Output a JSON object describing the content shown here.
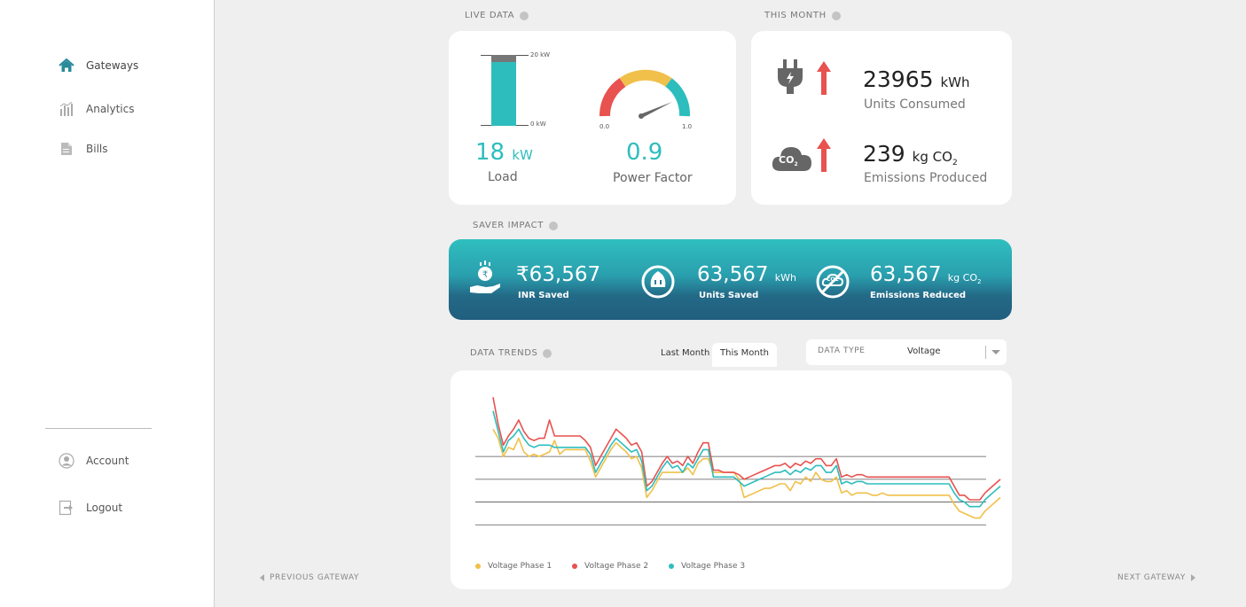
{
  "sidebar": {
    "items": [
      {
        "label": "Gateways",
        "icon": "home-icon"
      },
      {
        "label": "Analytics",
        "icon": "bar-chart-icon"
      },
      {
        "label": "Bills",
        "icon": "document-icon"
      }
    ],
    "bottom_items": [
      {
        "label": "Account",
        "icon": "user-icon"
      },
      {
        "label": "Logout",
        "icon": "logout-icon"
      }
    ]
  },
  "live_data": {
    "section_label": "LIVE DATA",
    "load": {
      "value": "18",
      "unit": "kW",
      "label": "Load",
      "max_label": "20 kW",
      "min_label": "0 kW",
      "fraction": 0.9
    },
    "power_factor": {
      "value": "0.9",
      "label": "Power Factor",
      "min_label": "0.0",
      "max_label": "1.0",
      "reading": 0.9
    }
  },
  "this_month": {
    "section_label": "THIS MONTH",
    "units_consumed": {
      "value": "23965",
      "unit": "kWh",
      "label": "Units Consumed"
    },
    "emissions": {
      "value": "239",
      "unit": "kg CO",
      "unit_sub": "2",
      "label": "Emissions Produced",
      "icon_text": "CO",
      "icon_sub": "2"
    }
  },
  "saver_impact": {
    "section_label": "SAVER IMPACT",
    "inr": {
      "value": "₹63,567",
      "label": "INR Saved"
    },
    "units": {
      "value": "63,567",
      "unit": "kWh",
      "label": "Units Saved"
    },
    "emissions": {
      "value": "63,567",
      "unit": "kg CO",
      "unit_sub": "2",
      "label": "Emissions Reduced",
      "icon_text": "CO2"
    }
  },
  "data_trends": {
    "section_label": "DATA TRENDS",
    "tabs": [
      "Last Month",
      "This Month"
    ],
    "active_tab": "This Month",
    "data_type_label": "DATA TYPE",
    "data_type_value": "Voltage"
  },
  "colors": {
    "teal": "#2ebdbd",
    "red": "#e8524f",
    "yellow": "#f0c04a",
    "grey": "#777777"
  },
  "chart_data": {
    "type": "line",
    "x": [
      0,
      1,
      2,
      3,
      4,
      5,
      6,
      7,
      8,
      9,
      10,
      11,
      12,
      13,
      14,
      15,
      16,
      17,
      18,
      19,
      20,
      21,
      22,
      23,
      24,
      25,
      26,
      27,
      28,
      29,
      30,
      31,
      32,
      33,
      34,
      35,
      36,
      37,
      38,
      39,
      40,
      41,
      42,
      43,
      44,
      45,
      46,
      47,
      48,
      49,
      50,
      51,
      52,
      53,
      54,
      55,
      56,
      57,
      58,
      59,
      60,
      61,
      62,
      63,
      64,
      65,
      66,
      67,
      68,
      69,
      70,
      71,
      72,
      73,
      74,
      75,
      76,
      77,
      78,
      79,
      80,
      81,
      82,
      83,
      84,
      85,
      86,
      87,
      88,
      89,
      90,
      91,
      92,
      93,
      94,
      95,
      96,
      97,
      98,
      99
    ],
    "series": [
      {
        "name": "Voltage Phase 1",
        "color": "#f0c04a",
        "values": [
          222,
          218,
          210,
          214,
          213,
          218,
          212,
          210,
          211,
          210,
          211,
          212,
          217,
          211,
          213,
          213,
          213,
          213,
          213,
          208,
          201,
          205,
          209,
          213,
          216,
          214,
          212,
          209,
          210,
          205,
          192,
          195,
          199,
          203,
          203,
          203,
          203,
          203,
          205,
          202,
          207,
          209,
          209,
          203,
          203,
          203,
          203,
          203,
          200,
          192,
          193,
          194,
          195,
          196,
          196,
          197,
          198,
          198,
          195,
          199,
          198,
          201,
          199,
          203,
          200,
          199,
          199,
          201,
          194,
          195,
          193,
          194,
          194,
          194,
          193,
          193,
          194,
          193,
          193,
          193,
          193,
          193,
          193,
          193,
          193,
          193,
          193,
          193,
          193,
          193,
          189,
          186,
          185,
          184,
          183,
          183,
          186,
          188,
          190,
          192
        ]
      },
      {
        "name": "Voltage Phase 2",
        "color": "#e8524f",
        "values": [
          236,
          224,
          215,
          219,
          222,
          226,
          221,
          218,
          217,
          218,
          218,
          226,
          219,
          219,
          219,
          219,
          219,
          219,
          217,
          214,
          206,
          210,
          214,
          218,
          222,
          220,
          218,
          215,
          216,
          212,
          197,
          199,
          203,
          207,
          210,
          207,
          208,
          206,
          210,
          207,
          212,
          216,
          216,
          204,
          204,
          203,
          203,
          203,
          202,
          200,
          201,
          202,
          203,
          204,
          205,
          206,
          206,
          207,
          205,
          207,
          206,
          208,
          207,
          209,
          209,
          206,
          206,
          209,
          201,
          202,
          201,
          202,
          202,
          201,
          201,
          201,
          201,
          201,
          201,
          201,
          201,
          201,
          201,
          201,
          201,
          201,
          201,
          201,
          201,
          201,
          197,
          193,
          193,
          191,
          191,
          191,
          194,
          196,
          198,
          200
        ]
      },
      {
        "name": "Voltage Phase 3",
        "color": "#2ebdbd",
        "values": [
          230,
          221,
          212,
          217,
          219,
          222,
          218,
          215,
          214,
          215,
          215,
          215,
          214,
          214,
          214,
          214,
          214,
          214,
          214,
          211,
          203,
          207,
          211,
          215,
          218,
          216,
          214,
          212,
          213,
          208,
          195,
          197,
          201,
          205,
          208,
          205,
          206,
          203,
          207,
          205,
          209,
          213,
          213,
          201,
          201,
          201,
          201,
          201,
          199,
          197,
          198,
          199,
          200,
          201,
          202,
          203,
          203,
          204,
          202,
          204,
          203,
          205,
          204,
          206,
          206,
          203,
          203,
          206,
          198,
          199,
          198,
          199,
          199,
          198,
          198,
          198,
          198,
          198,
          198,
          198,
          198,
          198,
          198,
          198,
          198,
          198,
          198,
          198,
          198,
          198,
          194,
          191,
          190,
          188,
          188,
          188,
          191,
          193,
          195,
          197
        ]
      }
    ],
    "ylim": [
      170,
      240
    ],
    "gridlines": [
      180,
      190,
      200,
      210
    ],
    "grid": true,
    "legend_position": "bottom-left"
  },
  "gateway_nav": {
    "previous": "PREVIOUS GATEWAY",
    "next": "NEXT GATEWAY"
  }
}
